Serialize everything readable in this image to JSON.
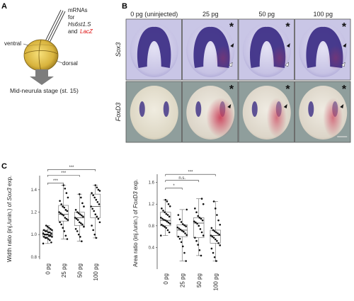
{
  "panel_labels": {
    "a": "A",
    "b": "B",
    "c": "C"
  },
  "panel_a": {
    "mrna_label_1": "mRNAs",
    "mrna_label_2": "for",
    "gene1": "Hs6st1.S",
    "and_label": "and",
    "gene2": "LacZ",
    "ventral_label": "ventral",
    "dorsal_label": "dorsal",
    "stage_label": "Mid-neurula stage (st. 15)"
  },
  "panel_b": {
    "columns": [
      "0 pg (uninjected)",
      "25 pg",
      "50 pg",
      "100 pg"
    ],
    "rows": [
      "Sox3",
      "FoxD3"
    ],
    "asterisk": "*",
    "colors": {
      "sox3_bg": "#c9c6e6",
      "foxd3_bg": "#8f9e9c",
      "stain_blue": "#3b2d84",
      "stain_red": "#c8314e"
    }
  },
  "chart_data": [
    {
      "type": "box",
      "ylabel": "Width ratio (inj./unin.) of Sox3 exp.",
      "ylabel_parts": [
        "Width ratio (inj./unin.) of ",
        "Sox3",
        " exp."
      ],
      "categories": [
        "0 pg",
        "25 pg",
        "50 pg",
        "100 pg"
      ],
      "ylim": [
        0.78,
        1.5
      ],
      "yticks": [
        0.8,
        1.0,
        1.2,
        1.4
      ],
      "ytick_labels": [
        "0.8",
        "1.0",
        "1.2",
        "1.4"
      ],
      "boxes": [
        {
          "whisker_low": 0.92,
          "q1": 0.98,
          "median": 1.0,
          "q3": 1.04,
          "whisker_high": 1.08
        },
        {
          "whisker_low": 0.96,
          "q1": 1.12,
          "median": 1.18,
          "q3": 1.26,
          "whisker_high": 1.44
        },
        {
          "whisker_low": 0.94,
          "q1": 1.08,
          "median": 1.15,
          "q3": 1.2,
          "whisker_high": 1.36
        },
        {
          "whisker_low": 0.97,
          "q1": 1.15,
          "median": 1.25,
          "q3": 1.36,
          "whisker_high": 1.44
        }
      ],
      "points": [
        [
          0.92,
          0.93,
          0.95,
          0.96,
          0.97,
          0.97,
          0.98,
          0.98,
          0.99,
          0.99,
          1.0,
          1.0,
          1.0,
          1.01,
          1.01,
          1.02,
          1.02,
          1.03,
          1.03,
          1.04,
          1.04,
          1.05,
          1.06,
          1.07,
          1.08
        ],
        [
          0.96,
          0.99,
          1.03,
          1.06,
          1.09,
          1.11,
          1.13,
          1.14,
          1.15,
          1.17,
          1.18,
          1.19,
          1.2,
          1.21,
          1.22,
          1.24,
          1.25,
          1.27,
          1.3,
          1.33,
          1.37,
          1.41,
          1.44
        ],
        [
          0.94,
          0.98,
          1.0,
          1.03,
          1.05,
          1.07,
          1.09,
          1.1,
          1.11,
          1.13,
          1.14,
          1.15,
          1.16,
          1.17,
          1.18,
          1.19,
          1.2,
          1.22,
          1.25,
          1.28,
          1.33,
          1.36
        ],
        [
          0.97,
          1.0,
          1.04,
          1.08,
          1.11,
          1.14,
          1.16,
          1.18,
          1.21,
          1.23,
          1.25,
          1.27,
          1.29,
          1.31,
          1.33,
          1.35,
          1.37,
          1.39,
          1.4,
          1.42,
          1.44
        ]
      ],
      "significance": [
        {
          "from": 0,
          "to": 3,
          "y": 1.58,
          "label": "***"
        },
        {
          "from": 0,
          "to": 2,
          "y": 1.53,
          "label": "***"
        },
        {
          "from": 0,
          "to": 1,
          "y": 1.46,
          "label": "***"
        }
      ]
    },
    {
      "type": "box",
      "ylabel": "Area ratio (inj./unin.) of FoxD3 exp.",
      "ylabel_parts": [
        "Area ratio (inj./unin.) of ",
        "FoxD3",
        " exp."
      ],
      "categories": [
        "0 pg",
        "25 pg",
        "50 pg",
        "100 pg"
      ],
      "ylim": [
        0.0,
        1.7
      ],
      "yticks": [
        0.4,
        0.8,
        1.2,
        1.6
      ],
      "ytick_labels": [
        "0.4",
        "0.8",
        "1.2",
        "1.6"
      ],
      "boxes": [
        {
          "whisker_low": 0.62,
          "q1": 0.8,
          "median": 0.9,
          "q3": 1.05,
          "whisker_high": 1.28
        },
        {
          "whisker_low": 0.15,
          "q1": 0.6,
          "median": 0.72,
          "q3": 0.82,
          "whisker_high": 1.1
        },
        {
          "whisker_low": 0.25,
          "q1": 0.58,
          "median": 0.85,
          "q3": 0.95,
          "whisker_high": 1.3
        },
        {
          "whisker_low": 0.15,
          "q1": 0.48,
          "median": 0.62,
          "q3": 0.72,
          "whisker_high": 1.25
        }
      ],
      "points": [
        [
          0.62,
          0.68,
          0.72,
          0.76,
          0.78,
          0.8,
          0.82,
          0.84,
          0.86,
          0.88,
          0.9,
          0.91,
          0.93,
          0.95,
          0.97,
          1.0,
          1.02,
          1.05,
          1.08,
          1.12,
          1.16,
          1.2,
          1.25,
          1.28
        ],
        [
          0.15,
          0.3,
          0.42,
          0.5,
          0.56,
          0.6,
          0.63,
          0.66,
          0.69,
          0.71,
          0.73,
          0.75,
          0.77,
          0.79,
          0.81,
          0.83,
          0.87,
          0.92,
          1.0,
          1.1
        ],
        [
          0.25,
          0.35,
          0.45,
          0.52,
          0.58,
          0.62,
          0.68,
          0.74,
          0.8,
          0.84,
          0.86,
          0.88,
          0.9,
          0.93,
          0.95,
          0.98,
          1.05,
          1.12,
          1.2,
          1.3
        ],
        [
          0.15,
          0.22,
          0.3,
          0.38,
          0.44,
          0.48,
          0.52,
          0.55,
          0.58,
          0.6,
          0.62,
          0.64,
          0.66,
          0.68,
          0.7,
          0.72,
          0.76,
          0.82,
          0.9,
          1.0,
          1.12,
          1.25
        ]
      ],
      "significance": [
        {
          "from": 0,
          "to": 3,
          "y": 1.75,
          "label": "***"
        },
        {
          "from": 0,
          "to": 2,
          "y": 1.64,
          "label": "n.s."
        },
        {
          "from": 0,
          "to": 1,
          "y": 1.5,
          "label": "*"
        }
      ]
    }
  ]
}
